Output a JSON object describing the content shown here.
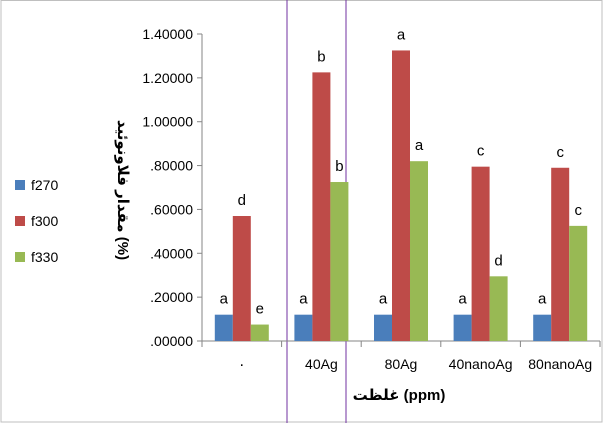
{
  "chart_data": {
    "type": "bar",
    "categories": [
      "٠",
      "40Ag",
      "80Ag",
      "40nanoAg",
      "80nanoAg"
    ],
    "series": [
      {
        "name": "f270",
        "color": "#4a7ebb",
        "values": [
          0.12,
          0.12,
          0.12,
          0.12,
          0.12
        ],
        "labels": [
          "a",
          "a",
          "a",
          "a",
          "a"
        ]
      },
      {
        "name": "f300",
        "color": "#be4b48",
        "values": [
          0.57,
          1.225,
          1.325,
          0.795,
          0.79
        ],
        "labels": [
          "d",
          "b",
          "a",
          "c",
          "c"
        ]
      },
      {
        "name": "f330",
        "color": "#98b954",
        "values": [
          0.075,
          0.725,
          0.82,
          0.295,
          0.525
        ],
        "labels": [
          "e",
          "b",
          "a",
          "d",
          "c"
        ]
      }
    ],
    "ylim": [
      0,
      1.4
    ],
    "yticks": [
      ".00000",
      ".20000",
      ".40000",
      ".60000",
      ".80000",
      "1.00000",
      "1.20000",
      "1.40000"
    ],
    "ylabel": "مقدار فلاونوئید (%)",
    "xlabel": "غلظت (ppm)",
    "legend_position": "left",
    "grid": false
  }
}
